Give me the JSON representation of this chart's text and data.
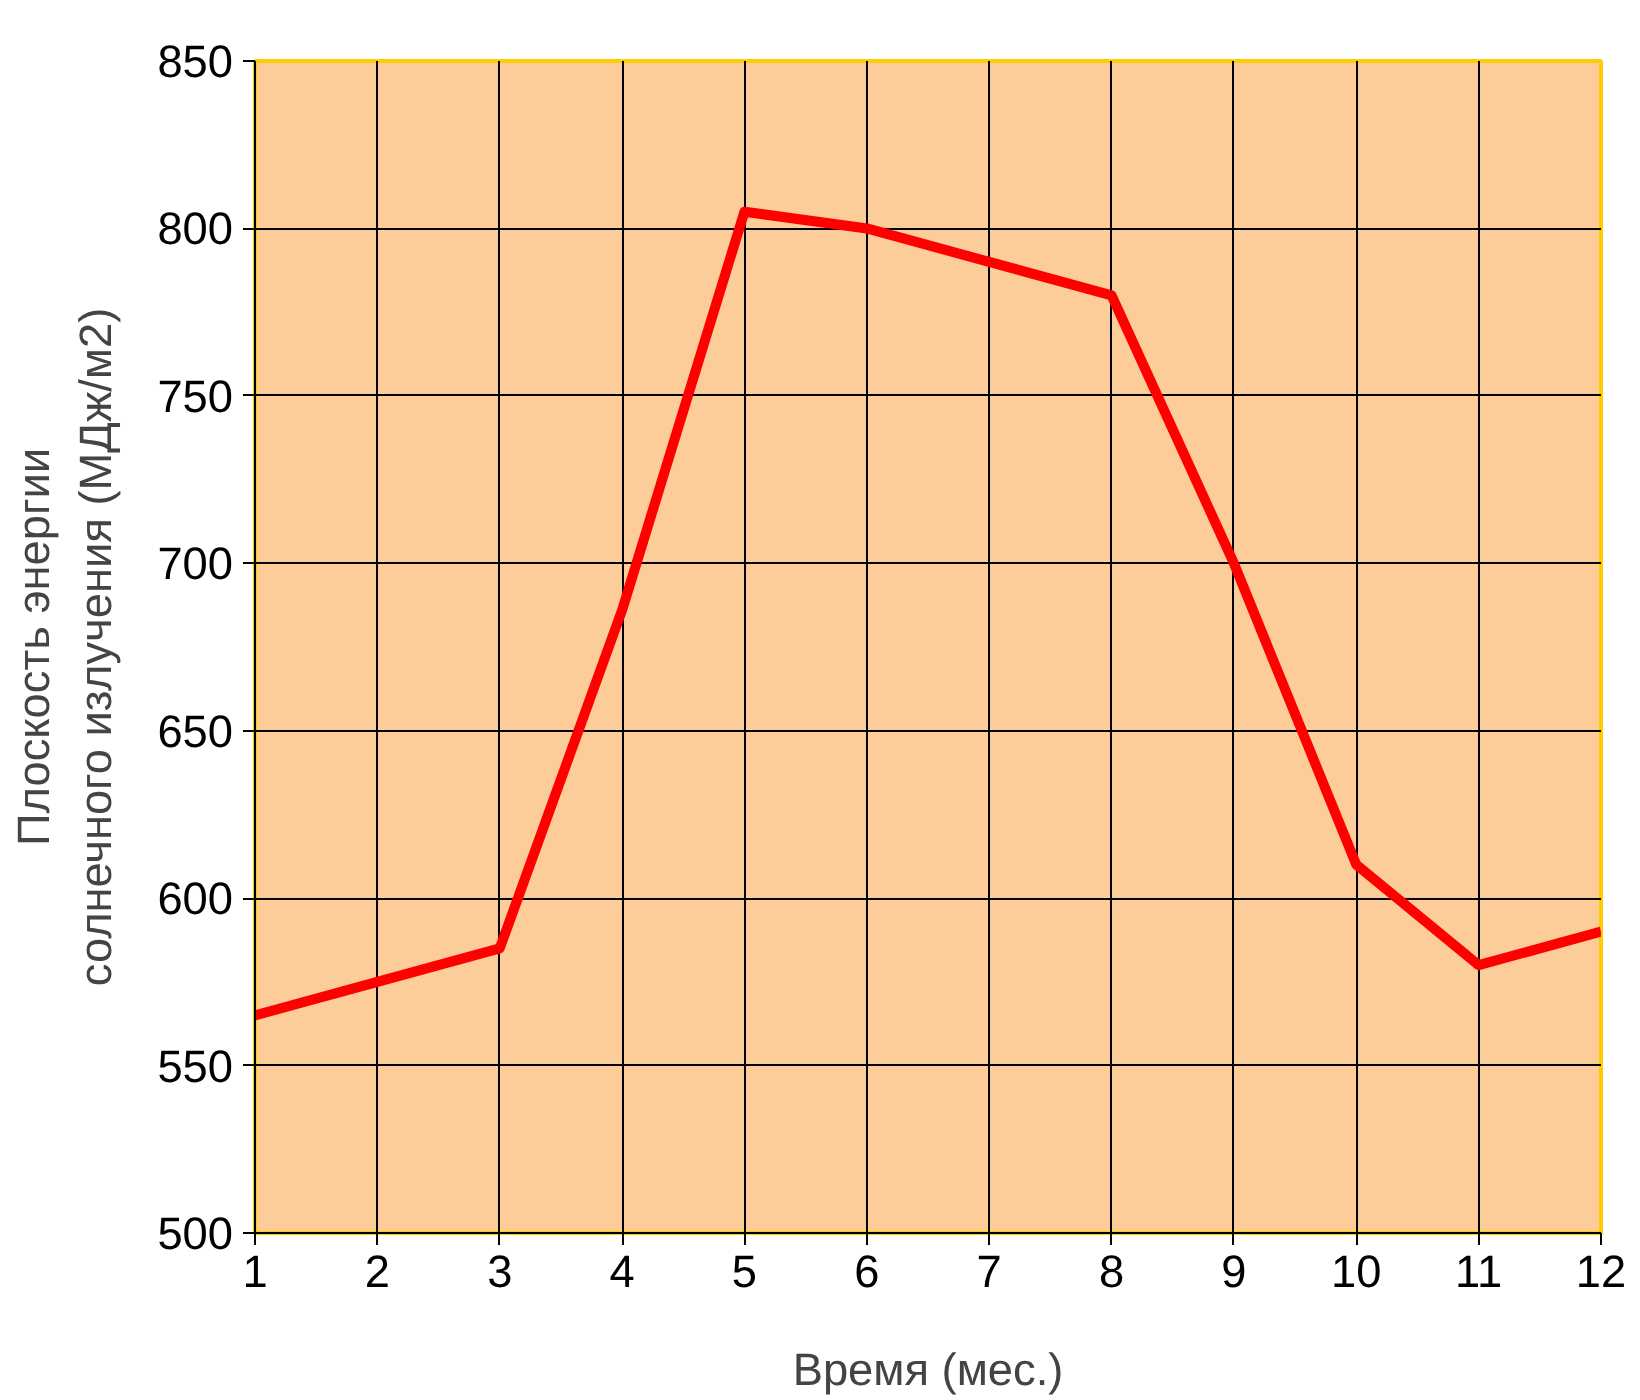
{
  "chart_data": {
    "type": "line",
    "xlabel": "Время (мес.)",
    "ylabel": "Плоскость энергии\nсолнечного излучения (МДж/м2)",
    "x": [
      1,
      2,
      3,
      4,
      5,
      6,
      7,
      8,
      9,
      10,
      11,
      12
    ],
    "series": [
      {
        "color": "#ff0000",
        "values": [
          565,
          575,
          585,
          686,
          805,
          800,
          790,
          780,
          700,
          610,
          580,
          590
        ]
      }
    ],
    "xlim": [
      1,
      12
    ],
    "ylim": [
      500,
      850
    ],
    "xticks": [
      1,
      2,
      3,
      4,
      5,
      6,
      7,
      8,
      9,
      10,
      11,
      12
    ],
    "yticks": [
      500,
      550,
      600,
      650,
      700,
      750,
      800,
      850
    ],
    "grid": true,
    "marker": "none",
    "line_style": "solid"
  }
}
